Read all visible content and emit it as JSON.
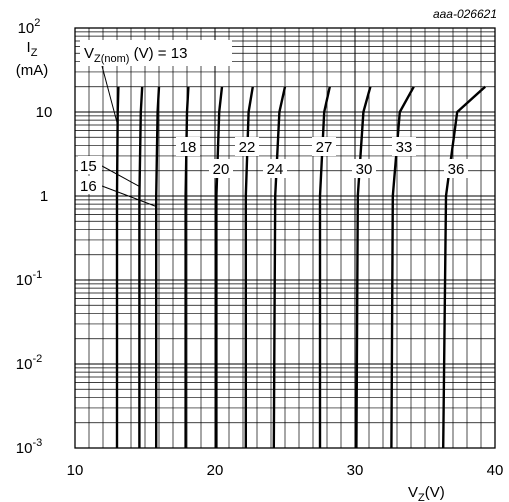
{
  "chart_data": {
    "type": "line",
    "figure_id": "aaa-026621",
    "ylabel": "I",
    "ylabel_sub": "Z",
    "yunit": "(mA)",
    "xlabel": "V",
    "xlabel_sub": "Z",
    "xunit": "(V)",
    "xlim": [
      10,
      40
    ],
    "ylim": [
      0.001,
      100
    ],
    "yscale": "log",
    "grid": true,
    "xticks": [
      {
        "v": 10,
        "label": "10"
      },
      {
        "v": 20,
        "label": "20"
      },
      {
        "v": 30,
        "label": "30"
      },
      {
        "v": 40,
        "label": "40"
      }
    ],
    "yticks": [
      {
        "v": 100,
        "base": "10",
        "exp": "2"
      },
      {
        "v": 10,
        "base": "10",
        "exp": ""
      },
      {
        "v": 1,
        "base": "1",
        "exp": ""
      },
      {
        "v": 0.1,
        "base": "10",
        "exp": "-1"
      },
      {
        "v": 0.01,
        "base": "10",
        "exp": "-2"
      },
      {
        "v": 0.001,
        "base": "10",
        "exp": "-3"
      }
    ],
    "legend_title": {
      "pre": "V",
      "sub": "Z(nom)",
      "post": " (V) = 13"
    },
    "series": [
      {
        "name": "13",
        "points": [
          [
            13.0,
            0.001
          ],
          [
            13.0,
            1
          ],
          [
            13.05,
            10
          ],
          [
            13.1,
            20
          ]
        ]
      },
      {
        "name": "15",
        "points": [
          [
            14.6,
            0.001
          ],
          [
            14.6,
            1
          ],
          [
            14.7,
            10
          ],
          [
            14.8,
            20
          ]
        ]
      },
      {
        "name": "16",
        "points": [
          [
            15.8,
            0.001
          ],
          [
            15.8,
            1
          ],
          [
            15.9,
            10
          ],
          [
            16.0,
            20
          ]
        ]
      },
      {
        "name": "18",
        "points": [
          [
            17.9,
            0.001
          ],
          [
            17.9,
            1
          ],
          [
            18.0,
            10
          ],
          [
            18.1,
            20
          ]
        ]
      },
      {
        "name": "20",
        "points": [
          [
            20.1,
            0.001
          ],
          [
            20.1,
            1
          ],
          [
            20.3,
            10
          ],
          [
            20.5,
            20
          ]
        ]
      },
      {
        "name": "22",
        "points": [
          [
            22.2,
            0.001
          ],
          [
            22.2,
            1
          ],
          [
            22.4,
            10
          ],
          [
            22.7,
            20
          ]
        ]
      },
      {
        "name": "24",
        "points": [
          [
            24.2,
            0.001
          ],
          [
            24.3,
            1
          ],
          [
            24.6,
            10
          ],
          [
            25.0,
            20
          ]
        ]
      },
      {
        "name": "27",
        "points": [
          [
            27.5,
            0.001
          ],
          [
            27.5,
            1
          ],
          [
            27.8,
            10
          ],
          [
            28.2,
            20
          ]
        ]
      },
      {
        "name": "30",
        "points": [
          [
            30.1,
            0.001
          ],
          [
            30.2,
            1
          ],
          [
            30.6,
            10
          ],
          [
            31.1,
            20
          ]
        ]
      },
      {
        "name": "33",
        "points": [
          [
            32.6,
            0.001
          ],
          [
            32.7,
            1
          ],
          [
            33.2,
            10
          ],
          [
            34.2,
            20
          ]
        ]
      },
      {
        "name": "36",
        "points": [
          [
            36.3,
            0.001
          ],
          [
            36.5,
            1
          ],
          [
            37.3,
            10
          ],
          [
            39.3,
            20
          ]
        ]
      }
    ]
  }
}
